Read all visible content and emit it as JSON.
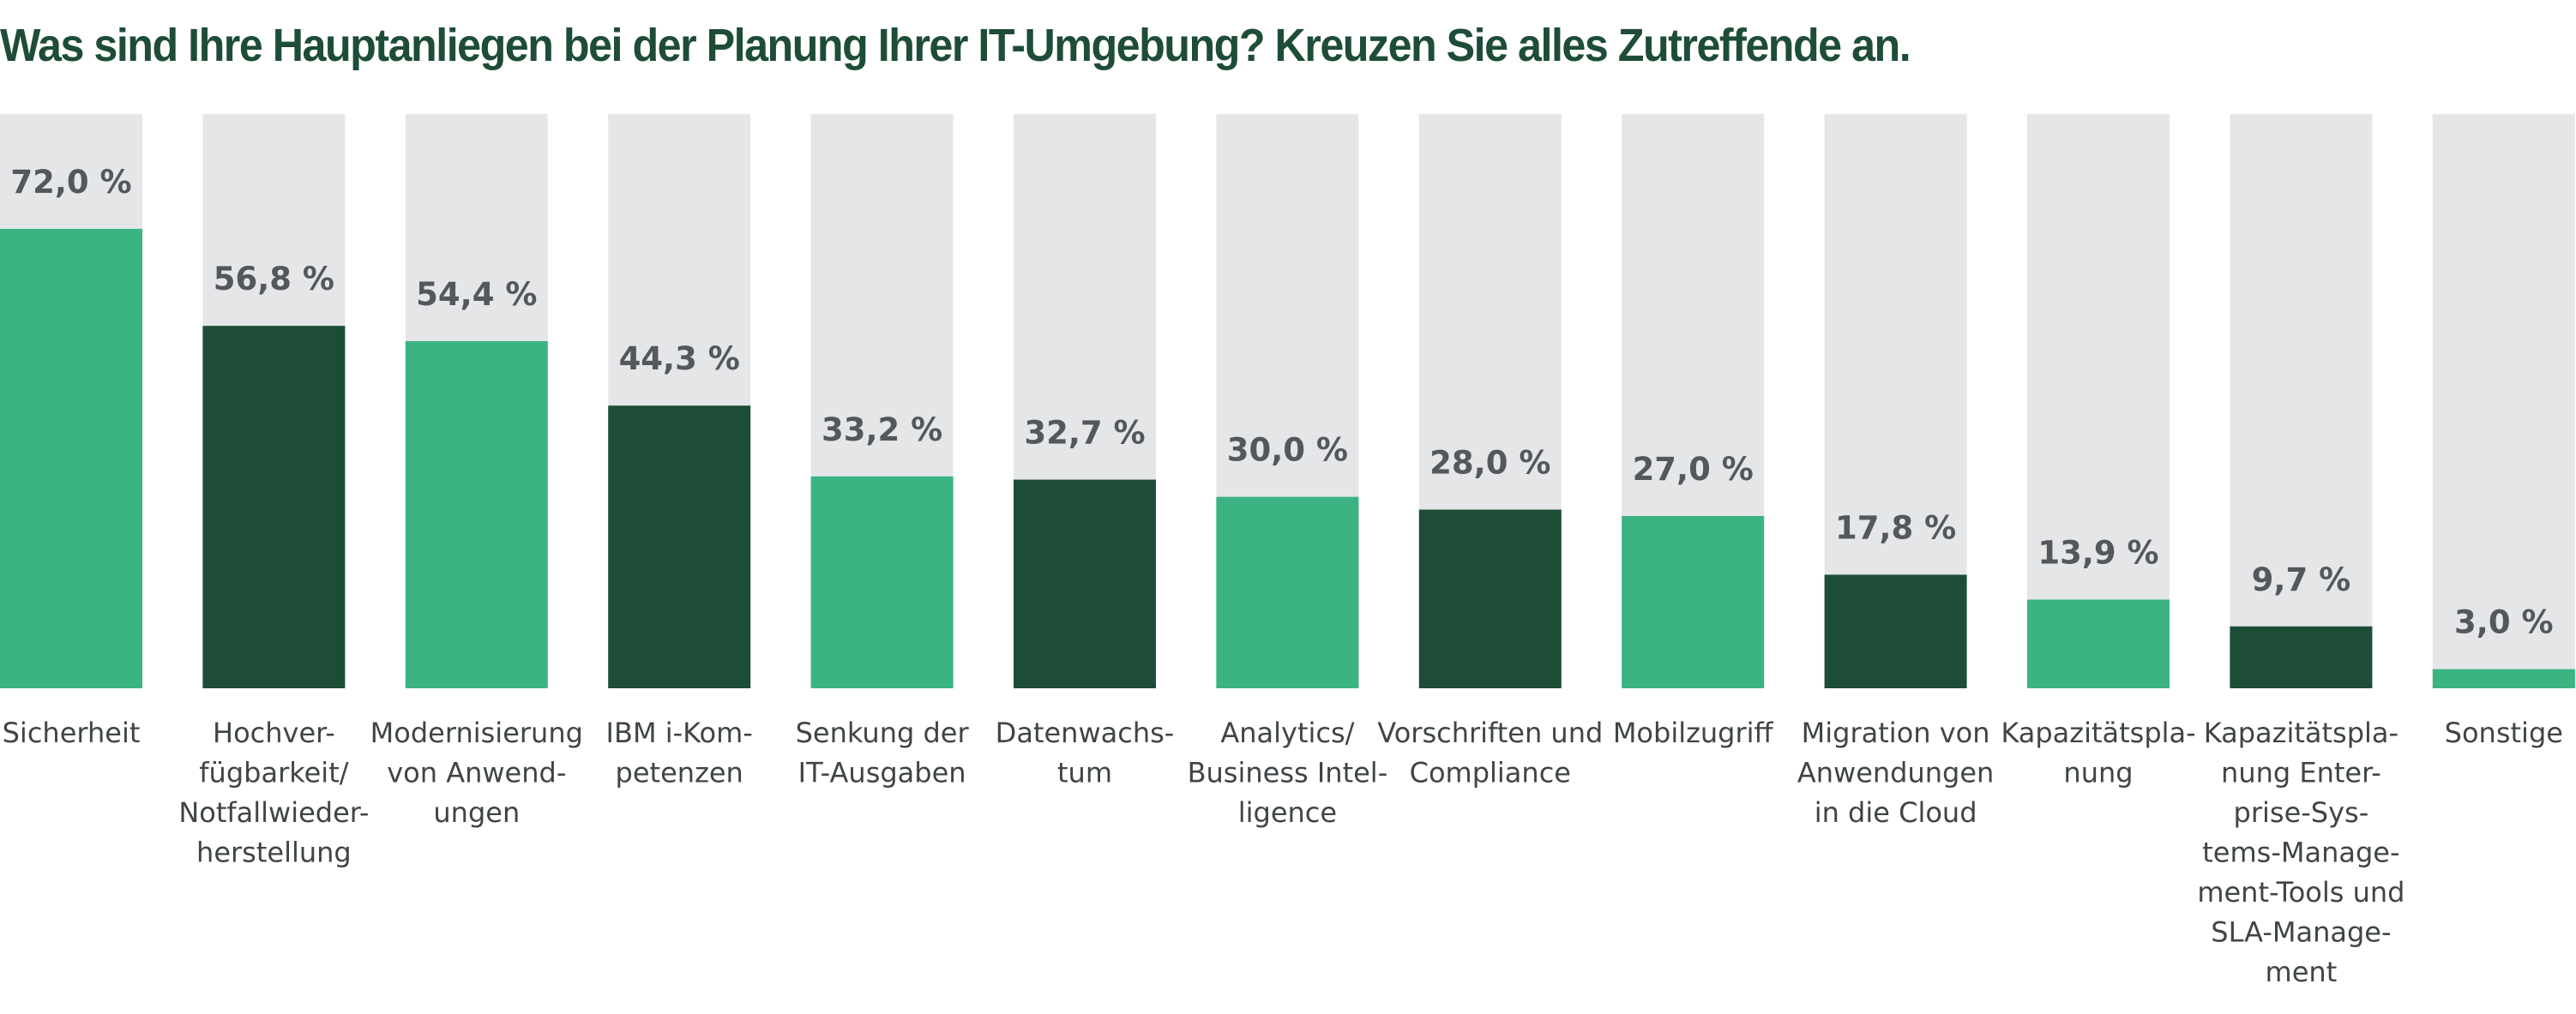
{
  "chart_data": {
    "type": "bar",
    "title": "Was sind Ihre Hauptanliegen bei der Planung Ihrer IT-Umgebung? Kreuzen Sie alles Zutreffende an.",
    "categories": [
      "Sicherheit",
      "Hochverfügbarkeit/ Notfallwiederherstellung",
      "Modernisierung von Anwendungen",
      "IBM i-Kompetenzen",
      "Senkung der IT-Ausgaben",
      "Datenwachstum",
      "Analytics/ Business Intelligence",
      "Vorschriften und Compliance",
      "Mobilzugriff",
      "Migration von Anwendungen in die Cloud",
      "Kapazitätsplanung",
      "Kapazitätsplanung Enterprise-Systems-Management-Tools und SLA-Management",
      "Sonstige"
    ],
    "category_label_lines": [
      [
        "Sicherheit"
      ],
      [
        "Hochver-",
        "fügbarkeit/",
        "Notfallwieder-",
        "herstellung"
      ],
      [
        "Modernisierung",
        "von Anwend-",
        "ungen"
      ],
      [
        "IBM i-Kom-",
        "petenzen"
      ],
      [
        "Senkung der",
        "IT-Ausgaben"
      ],
      [
        "Datenwachs-",
        "tum"
      ],
      [
        "Analytics/",
        "Business Intel-",
        "ligence"
      ],
      [
        "Vorschriften und",
        "Compliance"
      ],
      [
        "Mobilzugriff"
      ],
      [
        "Migration von",
        "Anwendungen",
        "in die Cloud"
      ],
      [
        "Kapazitätspla-",
        "nung"
      ],
      [
        "Kapazitätspla-",
        "nung Enter-",
        "prise-Sys-",
        "tems-Manage-",
        "ment-Tools und",
        "SLA-Manage-",
        "ment"
      ],
      [
        "Sonstige"
      ]
    ],
    "values": [
      72.0,
      56.8,
      54.4,
      44.3,
      33.2,
      32.7,
      30.0,
      28.0,
      27.0,
      17.8,
      13.9,
      9.7,
      3.0
    ],
    "value_labels": [
      "72,0 %",
      "56,8 %",
      "54,4 %",
      "44,3 %",
      "33,2 %",
      "32,7 %",
      "30,0 %",
      "28,0 %",
      "27,0 %",
      "17,8 %",
      "13,9 %",
      "9,7 %",
      "3,0 %"
    ],
    "ylim": [
      0,
      90
    ],
    "unit": "%",
    "xlabel": "",
    "ylabel": "",
    "grid": false,
    "legend": "none",
    "colors": {
      "title": "#1e4d37",
      "bar_light": "#3bb383",
      "bar_dark": "#1e4d37",
      "bar_background": "#e5e6e8",
      "value_label": "#54585c",
      "category_label": "#3f4447"
    },
    "bar_color_pattern": [
      "light",
      "dark"
    ]
  }
}
